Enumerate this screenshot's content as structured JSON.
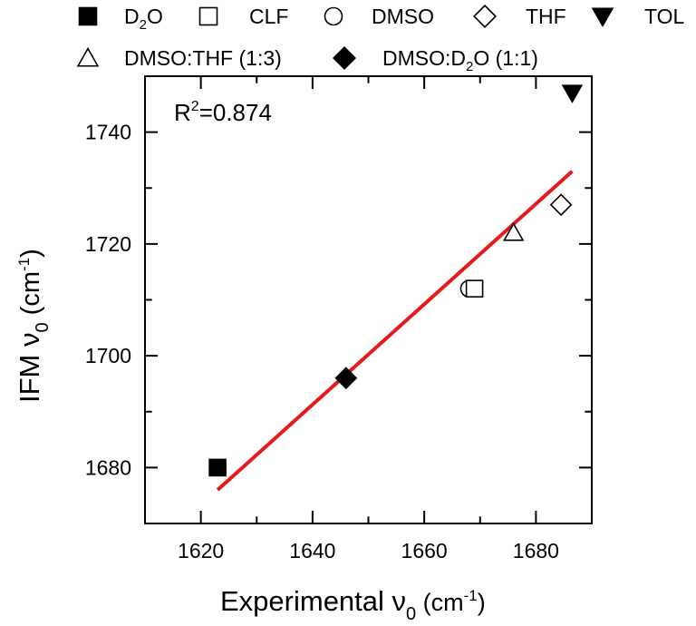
{
  "chart_data": {
    "type": "scatter",
    "title": "",
    "xlabel": "Experimental ν₀ (cm⁻¹)",
    "ylabel": "IFM ν₀ (cm⁻¹)",
    "xlim": [
      1610,
      1690
    ],
    "ylim": [
      1670,
      1750
    ],
    "x_ticks": [
      1620,
      1640,
      1660,
      1680
    ],
    "y_ticks": [
      1680,
      1700,
      1720,
      1740
    ],
    "grid": false,
    "legend_placement": "top, outside plot",
    "annotation": "R²=0.874",
    "series": [
      {
        "name": "D₂O",
        "marker": "square-filled",
        "points": [
          {
            "x": 1623,
            "y": 1680
          }
        ]
      },
      {
        "name": "CLF",
        "marker": "square-open",
        "points": [
          {
            "x": 1669,
            "y": 1712
          }
        ]
      },
      {
        "name": "DMSO",
        "marker": "circle-open",
        "points": [
          {
            "x": 1668,
            "y": 1712
          }
        ]
      },
      {
        "name": "THF",
        "marker": "diamond-open",
        "points": [
          {
            "x": 1684.5,
            "y": 1727
          }
        ]
      },
      {
        "name": "TOL",
        "marker": "triangle-down-filled",
        "points": [
          {
            "x": 1686.5,
            "y": 1747
          }
        ]
      },
      {
        "name": "DMSO:THF (1:3)",
        "marker": "triangle-up-open",
        "points": [
          {
            "x": 1676,
            "y": 1722
          }
        ]
      },
      {
        "name": "DMSO:D₂O (1:1)",
        "marker": "diamond-filled",
        "points": [
          {
            "x": 1646,
            "y": 1696
          }
        ]
      }
    ],
    "fit_line": {
      "x": [
        1623,
        1686.5
      ],
      "y": [
        1676,
        1733
      ],
      "color": "#e41a1c"
    }
  }
}
